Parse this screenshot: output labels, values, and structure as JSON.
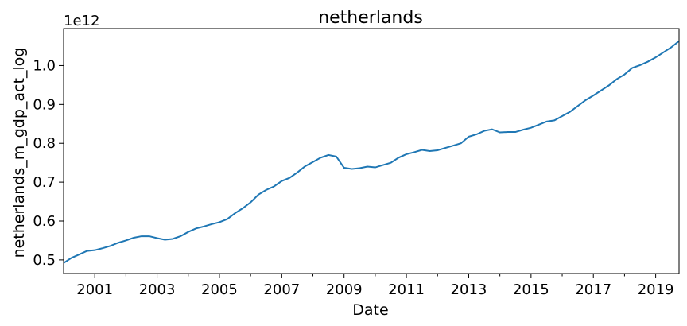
{
  "chart_data": {
    "type": "line",
    "title": "netherlands",
    "xlabel": "Date",
    "ylabel": "netherlands_m_gdp_act_log",
    "offset_label": "1e12",
    "xlim": [
      2000.0,
      2019.75
    ],
    "ylim": [
      0.465,
      1.095
    ],
    "grid": false,
    "legend": "none",
    "colors": {
      "line": "#1f77b4",
      "axis": "#000000",
      "background": "#ffffff"
    },
    "x_major_ticks": [
      {
        "value": 2001,
        "label": "2001"
      },
      {
        "value": 2003,
        "label": "2003"
      },
      {
        "value": 2005,
        "label": "2005"
      },
      {
        "value": 2007,
        "label": "2007"
      },
      {
        "value": 2009,
        "label": "2009"
      },
      {
        "value": 2011,
        "label": "2011"
      },
      {
        "value": 2013,
        "label": "2013"
      },
      {
        "value": 2015,
        "label": "2015"
      },
      {
        "value": 2017,
        "label": "2017"
      },
      {
        "value": 2019,
        "label": "2019"
      }
    ],
    "x_minor_ticks": [
      2002,
      2004,
      2006,
      2008,
      2010,
      2012,
      2014,
      2016,
      2018
    ],
    "y_ticks": [
      {
        "value": 0.5,
        "label": "0.5"
      },
      {
        "value": 0.6,
        "label": "0.6"
      },
      {
        "value": 0.7,
        "label": "0.7"
      },
      {
        "value": 0.8,
        "label": "0.8"
      },
      {
        "value": 0.9,
        "label": "0.9"
      },
      {
        "value": 1.0,
        "label": "1.0"
      }
    ],
    "series": [
      {
        "x": [
          2000.0,
          2000.25,
          2000.5,
          2000.75,
          2001.0,
          2001.25,
          2001.5,
          2001.75,
          2002.0,
          2002.25,
          2002.5,
          2002.75,
          2003.0,
          2003.25,
          2003.5,
          2003.75,
          2004.0,
          2004.25,
          2004.5,
          2004.75,
          2005.0,
          2005.25,
          2005.5,
          2005.75,
          2006.0,
          2006.25,
          2006.5,
          2006.75,
          2007.0,
          2007.25,
          2007.5,
          2007.75,
          2008.0,
          2008.25,
          2008.5,
          2008.75,
          2009.0,
          2009.25,
          2009.5,
          2009.75,
          2010.0,
          2010.25,
          2010.5,
          2010.75,
          2011.0,
          2011.25,
          2011.5,
          2011.75,
          2012.0,
          2012.25,
          2012.5,
          2012.75,
          2013.0,
          2013.25,
          2013.5,
          2013.75,
          2014.0,
          2014.25,
          2014.5,
          2014.75,
          2015.0,
          2015.25,
          2015.5,
          2015.75,
          2016.0,
          2016.25,
          2016.5,
          2016.75,
          2017.0,
          2017.25,
          2017.5,
          2017.75,
          2018.0,
          2018.25,
          2018.5,
          2018.75,
          2019.0,
          2019.25,
          2019.5,
          2019.75
        ],
        "values": [
          0.492,
          0.505,
          0.514,
          0.523,
          0.525,
          0.53,
          0.536,
          0.544,
          0.55,
          0.557,
          0.561,
          0.561,
          0.556,
          0.552,
          0.554,
          0.561,
          0.572,
          0.581,
          0.586,
          0.592,
          0.597,
          0.605,
          0.62,
          0.633,
          0.648,
          0.668,
          0.68,
          0.689,
          0.703,
          0.711,
          0.725,
          0.741,
          0.752,
          0.763,
          0.77,
          0.766,
          0.737,
          0.734,
          0.736,
          0.74,
          0.738,
          0.744,
          0.75,
          0.763,
          0.772,
          0.777,
          0.783,
          0.78,
          0.782,
          0.788,
          0.794,
          0.8,
          0.817,
          0.823,
          0.832,
          0.836,
          0.828,
          0.829,
          0.829,
          0.835,
          0.84,
          0.848,
          0.856,
          0.859,
          0.87,
          0.881,
          0.896,
          0.911,
          0.923,
          0.936,
          0.949,
          0.965,
          0.977,
          0.994,
          1.001,
          1.01,
          1.021,
          1.034,
          1.047,
          1.063
        ]
      }
    ]
  }
}
